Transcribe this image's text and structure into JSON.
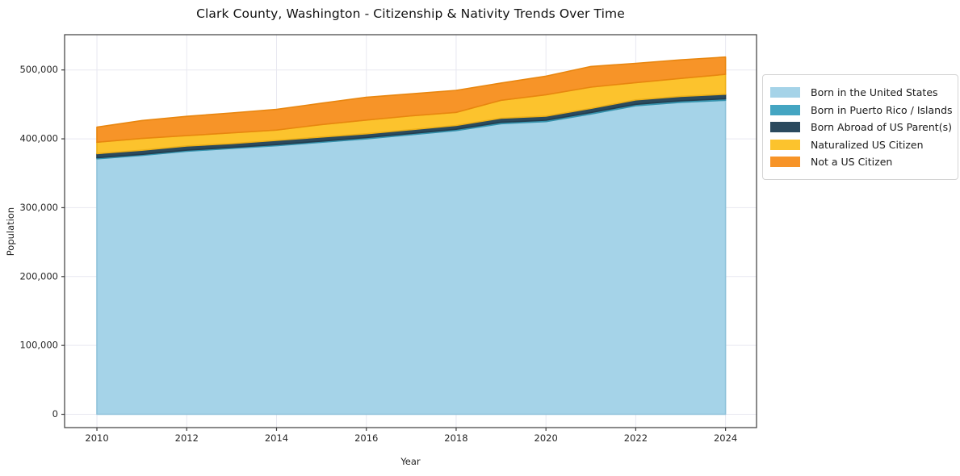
{
  "title": "Clark County, Washington - Citizenship & Nativity Trends Over Time",
  "chart_data": {
    "type": "area",
    "stacked": true,
    "title": "Clark County, Washington - Citizenship & Nativity Trends Over Time",
    "xlabel": "Year",
    "ylabel": "Population",
    "grid": true,
    "legend_position": "right-outside",
    "x": [
      2010,
      2011,
      2012,
      2013,
      2014,
      2015,
      2016,
      2017,
      2018,
      2019,
      2020,
      2021,
      2022,
      2023,
      2024
    ],
    "series": [
      {
        "name": "Born in the United States",
        "color": "#a5d3e8",
        "edge_color": "#8fc2da",
        "values": [
          371000,
          376000,
          382000,
          386000,
          390000,
          395000,
          400000,
          406000,
          412000,
          422000,
          425000,
          436000,
          448000,
          453000,
          456000
        ]
      },
      {
        "name": "Born in Puerto Rico / Islands",
        "color": "#44a5c2",
        "edge_color": "#3592ad",
        "values": [
          1500,
          1500,
          1600,
          1600,
          1700,
          1700,
          1800,
          1800,
          1900,
          2000,
          2000,
          2100,
          2100,
          2200,
          2200
        ]
      },
      {
        "name": "Born Abroad of US Parent(s)",
        "color": "#2b4a5e",
        "edge_color": "#223d4e",
        "values": [
          6000,
          6000,
          6000,
          5500,
          6000,
          6000,
          5500,
          5500,
          5500,
          6000,
          6000,
          6000,
          6500,
          6500,
          6500
        ]
      },
      {
        "name": "Naturalized US Citizen",
        "color": "#fcc32d",
        "edge_color": "#edb018",
        "values": [
          16500,
          17000,
          15000,
          15500,
          15000,
          18000,
          20000,
          20000,
          19000,
          26000,
          31000,
          31000,
          25000,
          26000,
          29000
        ]
      },
      {
        "name": "Not a US Citizen",
        "color": "#f79428",
        "edge_color": "#e8860f",
        "values": [
          22000,
          26000,
          28000,
          29000,
          30000,
          31000,
          33000,
          32000,
          32000,
          25000,
          27000,
          30000,
          28000,
          27000,
          25000
        ]
      }
    ],
    "x_tick_values": [
      2010,
      2012,
      2014,
      2016,
      2018,
      2020,
      2022,
      2024
    ],
    "x_tick_labels": [
      "2010",
      "2012",
      "2014",
      "2016",
      "2018",
      "2020",
      "2022",
      "2024"
    ],
    "y_tick_values": [
      0,
      100000,
      200000,
      300000,
      400000,
      500000
    ],
    "y_tick_labels": [
      "0",
      "100,000",
      "200,000",
      "300,000",
      "400,000",
      "500,000"
    ],
    "xlim": [
      2009.28,
      2024.69
    ],
    "ylim": [
      -19300,
      551200
    ]
  }
}
